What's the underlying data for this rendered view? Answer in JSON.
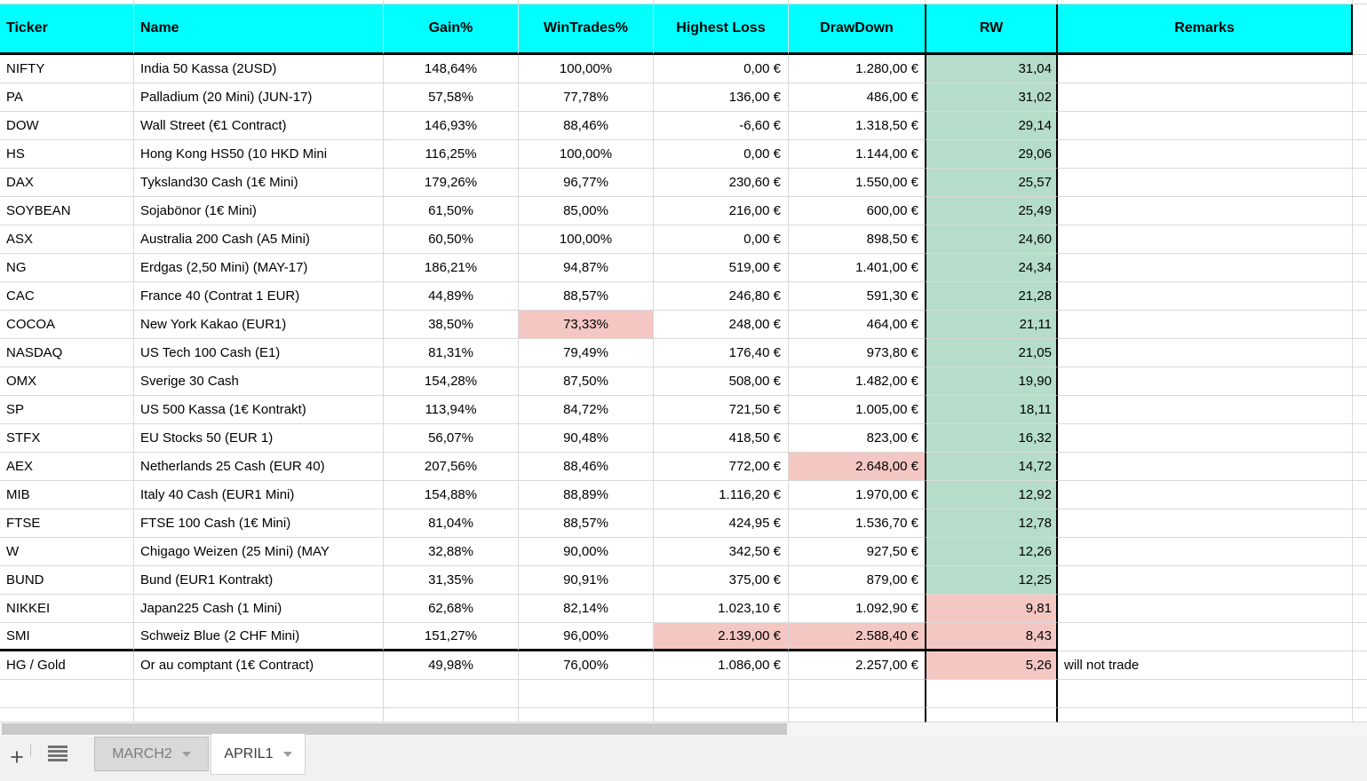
{
  "colors": {
    "header_bg": "#00ffff",
    "green": "#b5ddc9",
    "red": "#f4c7c3",
    "grid": "#d9d9d9",
    "scrollbar_thumb": "#c9c9c9",
    "scrollbar_track": "#f5f5f5",
    "tabbar_bg": "#f1f1f1",
    "tab_inactive_bg": "#d9d9d9",
    "tab_inactive_text": "#7c7c7c",
    "tab_active_bg": "#ffffff",
    "tab_active_text": "#3c3c3c",
    "icon": "#5a5a5a"
  },
  "columns": [
    {
      "key": "ticker",
      "label": "Ticker"
    },
    {
      "key": "name",
      "label": "Name"
    },
    {
      "key": "gain",
      "label": "Gain%"
    },
    {
      "key": "win",
      "label": "WinTrades%"
    },
    {
      "key": "loss",
      "label": "Highest Loss"
    },
    {
      "key": "dd",
      "label": "DrawDown"
    },
    {
      "key": "rw",
      "label": "RW"
    },
    {
      "key": "remarks",
      "label": "Remarks"
    }
  ],
  "rows": [
    {
      "ticker": "NIFTY",
      "name": "India 50 Kassa (2USD)",
      "gain": "148,64%",
      "win": "100,00%",
      "loss": "0,00 €",
      "dd": "1.280,00 €",
      "rw": "31,04",
      "remarks": "",
      "rw_bg": "green"
    },
    {
      "ticker": "PA",
      "name": "Palladium (20 Mini) (JUN-17)",
      "gain": "57,58%",
      "win": "77,78%",
      "loss": "136,00 €",
      "dd": "486,00 €",
      "rw": "31,02",
      "remarks": "",
      "rw_bg": "green"
    },
    {
      "ticker": "DOW",
      "name": "Wall Street (€1 Contract)",
      "gain": "146,93%",
      "win": "88,46%",
      "loss": "-6,60 €",
      "dd": "1.318,50 €",
      "rw": "29,14",
      "remarks": "",
      "rw_bg": "green"
    },
    {
      "ticker": "HS",
      "name": "Hong Kong HS50 (10 HKD Mini",
      "gain": "116,25%",
      "win": "100,00%",
      "loss": "0,00 €",
      "dd": "1.144,00 €",
      "rw": "29,06",
      "remarks": "",
      "rw_bg": "green"
    },
    {
      "ticker": "DAX",
      "name": "Tyksland30 Cash (1€ Mini)",
      "gain": "179,26%",
      "win": "96,77%",
      "loss": "230,60 €",
      "dd": "1.550,00 €",
      "rw": "25,57",
      "remarks": "",
      "rw_bg": "green"
    },
    {
      "ticker": "SOYBEAN",
      "name": "Sojabönor (1€ Mini)",
      "gain": "61,50%",
      "win": "85,00%",
      "loss": "216,00 €",
      "dd": "600,00 €",
      "rw": "25,49",
      "remarks": "",
      "rw_bg": "green"
    },
    {
      "ticker": "ASX",
      "name": "Australia 200 Cash (A5 Mini)",
      "gain": "60,50%",
      "win": "100,00%",
      "loss": "0,00 €",
      "dd": "898,50 €",
      "rw": "24,60",
      "remarks": "",
      "rw_bg": "green"
    },
    {
      "ticker": "NG",
      "name": "Erdgas (2,50 Mini) (MAY-17)",
      "gain": "186,21%",
      "win": "94,87%",
      "loss": "519,00 €",
      "dd": "1.401,00 €",
      "rw": "24,34",
      "remarks": "",
      "rw_bg": "green"
    },
    {
      "ticker": "CAC",
      "name": "France 40 (Contrat 1 EUR)",
      "gain": "44,89%",
      "win": "88,57%",
      "loss": "246,80 €",
      "dd": "591,30 €",
      "rw": "21,28",
      "remarks": "",
      "rw_bg": "green"
    },
    {
      "ticker": "COCOA",
      "name": "New York Kakao (EUR1)",
      "gain": "38,50%",
      "win": "73,33%",
      "loss": "248,00 €",
      "dd": "464,00 €",
      "rw": "21,11",
      "remarks": "",
      "rw_bg": "green",
      "win_bg": "red"
    },
    {
      "ticker": "NASDAQ",
      "name": "US Tech 100 Cash (E1)",
      "gain": "81,31%",
      "win": "79,49%",
      "loss": "176,40 €",
      "dd": "973,80 €",
      "rw": "21,05",
      "remarks": "",
      "rw_bg": "green"
    },
    {
      "ticker": "OMX",
      "name": "Sverige 30 Cash",
      "gain": "154,28%",
      "win": "87,50%",
      "loss": "508,00 €",
      "dd": "1.482,00 €",
      "rw": "19,90",
      "remarks": "",
      "rw_bg": "green"
    },
    {
      "ticker": "SP",
      "name": "US 500 Kassa (1€ Kontrakt)",
      "gain": "113,94%",
      "win": "84,72%",
      "loss": "721,50 €",
      "dd": "1.005,00 €",
      "rw": "18,11",
      "remarks": "",
      "rw_bg": "green"
    },
    {
      "ticker": "STFX",
      "name": "EU Stocks 50 (EUR 1)",
      "gain": "56,07%",
      "win": "90,48%",
      "loss": "418,50 €",
      "dd": "823,00 €",
      "rw": "16,32",
      "remarks": "",
      "rw_bg": "green"
    },
    {
      "ticker": "AEX",
      "name": "Netherlands 25 Cash (EUR 40)",
      "gain": "207,56%",
      "win": "88,46%",
      "loss": "772,00 €",
      "dd": "2.648,00 €",
      "rw": "14,72",
      "remarks": "",
      "rw_bg": "green",
      "dd_bg": "red"
    },
    {
      "ticker": "MIB",
      "name": "Italy 40 Cash (EUR1 Mini)",
      "gain": "154,88%",
      "win": "88,89%",
      "loss": "1.116,20 €",
      "dd": "1.970,00 €",
      "rw": "12,92",
      "remarks": "",
      "rw_bg": "green"
    },
    {
      "ticker": "FTSE",
      "name": "FTSE 100 Cash (1€ Mini)",
      "gain": "81,04%",
      "win": "88,57%",
      "loss": "424,95 €",
      "dd": "1.536,70 €",
      "rw": "12,78",
      "remarks": "",
      "rw_bg": "green"
    },
    {
      "ticker": "W",
      "name": "Chigago Weizen (25 Mini) (MAY",
      "gain": "32,88%",
      "win": "90,00%",
      "loss": "342,50 €",
      "dd": "927,50 €",
      "rw": "12,26",
      "remarks": "",
      "rw_bg": "green"
    },
    {
      "ticker": "BUND",
      "name": "Bund (EUR1 Kontrakt)",
      "gain": "31,35%",
      "win": "90,91%",
      "loss": "375,00 €",
      "dd": "879,00 €",
      "rw": "12,25",
      "remarks": "",
      "rw_bg": "green"
    },
    {
      "ticker": "NIKKEI",
      "name": "Japan225 Cash (1 Mini)",
      "gain": "62,68%",
      "win": "82,14%",
      "loss": "1.023,10 €",
      "dd": "1.092,90 €",
      "rw": "9,81",
      "remarks": "",
      "rw_bg": "red"
    },
    {
      "ticker": "SMI",
      "name": "Schweiz Blue (2 CHF Mini)",
      "gain": "151,27%",
      "win": "96,00%",
      "loss": "2.139,00 €",
      "dd": "2.588,40 €",
      "rw": "8,43",
      "remarks": "",
      "rw_bg": "red",
      "loss_bg": "red",
      "dd_bg": "red",
      "thick": true
    },
    {
      "ticker": "HG / Gold",
      "name": "Or au comptant (1€ Contract)",
      "gain": "49,98%",
      "win": "76,00%",
      "loss": "1.086,00 €",
      "dd": "2.257,00 €",
      "rw": "5,26",
      "remarks": "will not trade",
      "rw_bg": "red"
    },
    {
      "ticker": "",
      "name": "",
      "gain": "",
      "win": "",
      "loss": "",
      "dd": "",
      "rw": "",
      "remarks": ""
    },
    {
      "ticker": "",
      "name": "",
      "gain": "",
      "win": "",
      "loss": "",
      "dd": "",
      "rw": "",
      "remarks": "",
      "partial": true
    }
  ],
  "footer": {
    "add_sheet_label": "+",
    "tabs": [
      {
        "label": "MARCH2",
        "active": false
      },
      {
        "label": "APRIL1",
        "active": true
      }
    ]
  }
}
